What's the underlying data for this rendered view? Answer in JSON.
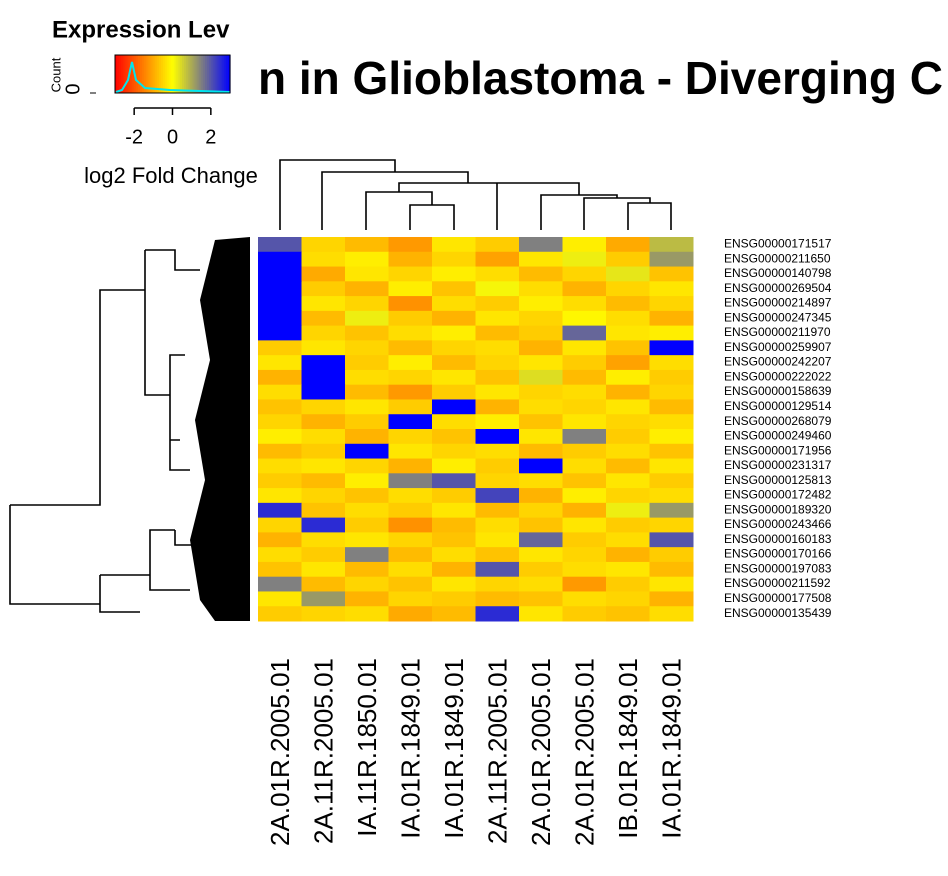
{
  "chart_data": {
    "type": "heatmap",
    "title": "n in Glioblastoma - Diverging C",
    "key_title": "Expression Lev",
    "key_xlabel": "log2 Fold Change",
    "key_ylabel": "Count",
    "key_yticks": [
      0
    ],
    "xticks": [
      -2,
      0,
      2
    ],
    "zlim": [
      -3,
      3
    ],
    "colors": [
      "#ff0000",
      "#ffff00",
      "#0000ff"
    ],
    "categories": [
      "2A.01R.2005.01",
      "2A.11R.2005.01",
      "IA.11R.1850.01",
      "IA.01R.1849.01",
      "IA.01R.1849.01",
      "2A.11R.2005.01",
      "2A.01R.2005.01",
      "2A.01R.2005.01",
      "IB.01R.1849.01",
      "IA.01R.1849.01"
    ],
    "rows": [
      "ENSG00000171517",
      "ENSG00000211650",
      "ENSG00000140798",
      "ENSG00000269504",
      "ENSG00000214897",
      "ENSG00000247345",
      "ENSG00000211970",
      "ENSG00000259907",
      "ENSG00000242207",
      "ENSG00000222022",
      "ENSG00000158639",
      "ENSG00000129514",
      "ENSG00000268079",
      "ENSG00000249460",
      "ENSG00000171956",
      "ENSG00000231317",
      "ENSG00000125813",
      "ENSG00000172482",
      "ENSG00000189320",
      "ENSG00000243466",
      "ENSG00000160183",
      "ENSG00000170166",
      "ENSG00000197083",
      "ENSG00000211592",
      "ENSG00000177508",
      "ENSG00000135439"
    ],
    "values": [
      [
        2,
        -0.5,
        -0.8,
        -1.2,
        -0.3,
        -0.6,
        1.5,
        -0.2,
        -1.0,
        0.8
      ],
      [
        3,
        -0.4,
        -0.2,
        -0.9,
        -0.5,
        -1.1,
        -0.3,
        0.2,
        -0.6,
        1.2
      ],
      [
        3,
        -1.0,
        -0.3,
        -0.5,
        -0.2,
        -0.4,
        -0.8,
        -0.5,
        0.3,
        -0.7
      ],
      [
        3,
        -0.6,
        -0.9,
        -0.2,
        -0.7,
        0.1,
        -0.4,
        -0.9,
        -0.5,
        -0.3
      ],
      [
        3,
        -0.3,
        -0.5,
        -1.3,
        -0.4,
        -0.6,
        -0.2,
        -0.4,
        -0.8,
        -0.5
      ],
      [
        3,
        -0.8,
        0.2,
        -0.6,
        -0.9,
        -0.3,
        -0.5,
        -0.1,
        -0.4,
        -0.9
      ],
      [
        3,
        -0.5,
        -0.7,
        -0.4,
        -0.2,
        -0.8,
        -0.6,
        1.8,
        -0.3,
        -0.2
      ],
      [
        -0.6,
        -0.3,
        -0.5,
        -0.8,
        -0.5,
        -0.4,
        -0.9,
        -0.3,
        -0.7,
        3
      ],
      [
        -0.3,
        3,
        -0.6,
        -0.2,
        -0.8,
        -0.5,
        -0.3,
        -0.6,
        -1.1,
        -0.4
      ],
      [
        -0.9,
        3,
        -0.4,
        -0.5,
        -0.3,
        -0.7,
        0.4,
        -0.8,
        -0.2,
        -0.6
      ],
      [
        -0.4,
        3,
        -0.8,
        -1.2,
        -0.6,
        -0.3,
        -0.5,
        -0.4,
        -0.9,
        -0.5
      ],
      [
        -0.7,
        -0.5,
        -0.3,
        -0.6,
        3,
        -0.9,
        -0.4,
        -0.5,
        -0.3,
        -0.8
      ],
      [
        -0.5,
        -0.9,
        -0.6,
        3,
        -0.4,
        -0.2,
        -0.7,
        -0.3,
        -0.5,
        -0.4
      ],
      [
        -0.2,
        -0.4,
        -0.9,
        -0.5,
        -0.7,
        3,
        -0.3,
        1.5,
        -0.6,
        -0.2
      ],
      [
        -0.8,
        -0.6,
        3,
        -0.3,
        -0.5,
        -0.4,
        -0.8,
        -0.6,
        -0.4,
        -0.7
      ],
      [
        -0.4,
        -0.3,
        -0.5,
        -0.9,
        -0.2,
        -0.6,
        3,
        -0.4,
        -0.8,
        -0.3
      ],
      [
        -0.6,
        -0.8,
        -0.2,
        1.5,
        2.0,
        -0.5,
        -0.4,
        -0.7,
        -0.3,
        -0.6
      ],
      [
        -0.3,
        -0.5,
        -0.7,
        -0.4,
        -0.6,
        2.2,
        -0.9,
        -0.2,
        -0.5,
        -0.4
      ],
      [
        2.5,
        -0.7,
        -0.4,
        -0.6,
        -0.3,
        -0.8,
        -0.5,
        -0.9,
        0.2,
        1.2
      ],
      [
        -0.5,
        2.5,
        -0.6,
        -1.3,
        -0.8,
        -0.4,
        -0.7,
        -0.3,
        -0.6,
        -0.5
      ],
      [
        -0.9,
        -0.4,
        -0.3,
        -0.5,
        -0.7,
        -0.3,
        1.8,
        -0.6,
        -0.4,
        2.0
      ],
      [
        -0.4,
        -0.6,
        1.5,
        -0.8,
        -0.4,
        -0.7,
        -0.3,
        -0.5,
        -0.9,
        -0.6
      ],
      [
        -0.7,
        -0.3,
        -0.8,
        -0.4,
        -0.9,
        2.0,
        -0.6,
        -0.4,
        -0.3,
        -0.8
      ],
      [
        1.5,
        -0.8,
        -0.5,
        -0.7,
        -0.3,
        -0.5,
        -0.4,
        -1.2,
        -0.6,
        -0.3
      ],
      [
        -0.3,
        1.2,
        -0.9,
        -0.5,
        -0.6,
        -0.8,
        -0.7,
        -0.4,
        -0.5,
        -0.9
      ],
      [
        -0.6,
        -0.5,
        -0.4,
        -1.0,
        -0.8,
        2.5,
        -0.3,
        -0.6,
        -0.7,
        -0.4
      ]
    ]
  }
}
